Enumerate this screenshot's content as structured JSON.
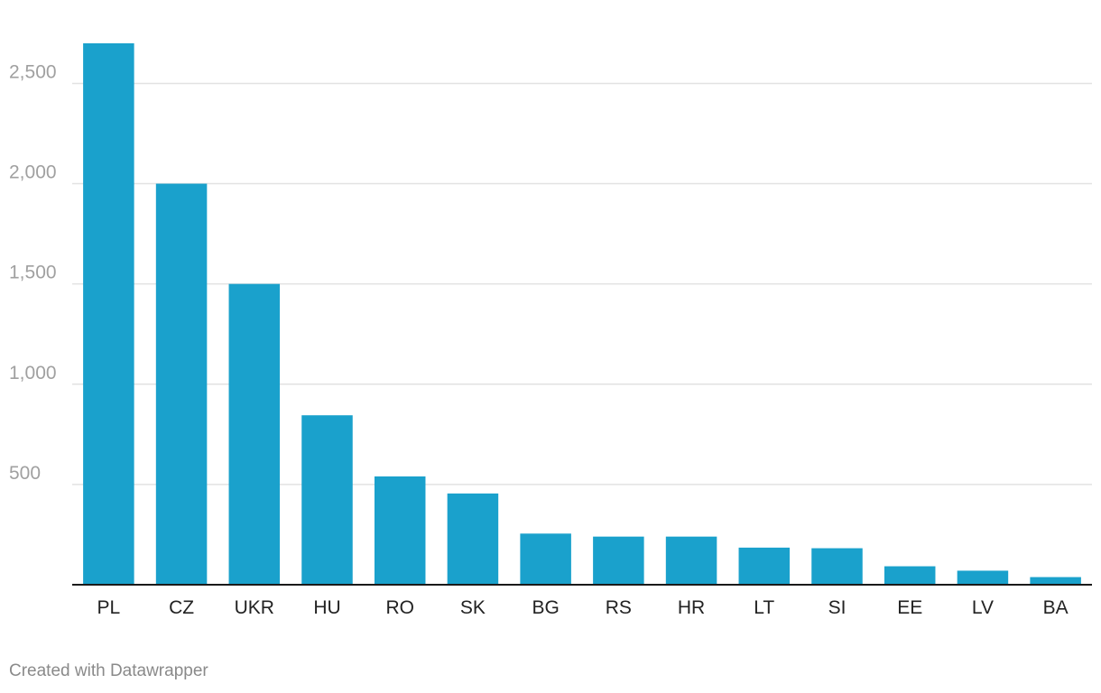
{
  "chart_data": {
    "type": "bar",
    "title": "",
    "xlabel": "",
    "ylabel": "",
    "categories": [
      "PL",
      "CZ",
      "UKR",
      "HU",
      "RO",
      "SK",
      "BG",
      "RS",
      "HR",
      "LT",
      "SI",
      "EE",
      "LV",
      "BA"
    ],
    "values": [
      2700,
      2000,
      1500,
      845,
      540,
      455,
      255,
      240,
      240,
      185,
      182,
      92,
      70,
      38
    ],
    "ylim": [
      0,
      2700
    ],
    "yticks": [
      500,
      1000,
      1500,
      2000,
      2500
    ],
    "ytick_labels": [
      "500",
      "1,000",
      "1,500",
      "2,000",
      "2,500"
    ],
    "grid": true,
    "legend": "none",
    "bar_color": "#1aa1cc"
  },
  "footer": {
    "credit": "Created with Datawrapper"
  }
}
